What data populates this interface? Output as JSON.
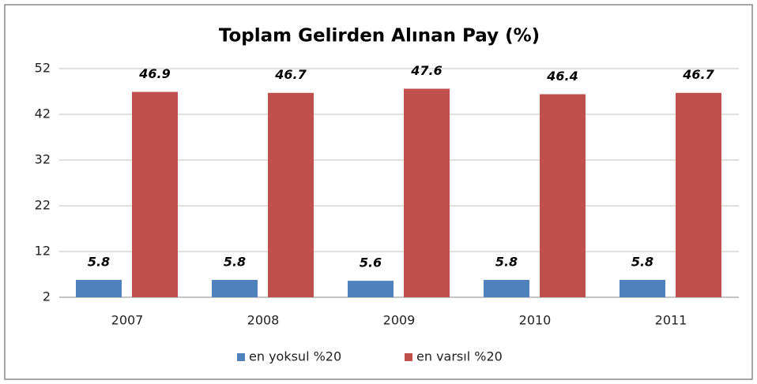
{
  "chart_data": {
    "type": "bar",
    "title": "Toplam Gelirden Alınan Pay (%)",
    "categories": [
      "2007",
      "2008",
      "2009",
      "2010",
      "2011"
    ],
    "series": [
      {
        "name": "en yoksul %20",
        "color": "#4f81bd",
        "values": [
          5.8,
          5.8,
          5.6,
          5.8,
          5.8
        ]
      },
      {
        "name": "en varsıl %20",
        "color": "#c0504d",
        "values": [
          46.9,
          46.7,
          47.6,
          46.4,
          46.7
        ]
      }
    ],
    "ylim": [
      2,
      52
    ],
    "yticks": [
      2,
      12,
      22,
      32,
      42,
      52
    ],
    "grid": true,
    "legend": "bottom"
  }
}
